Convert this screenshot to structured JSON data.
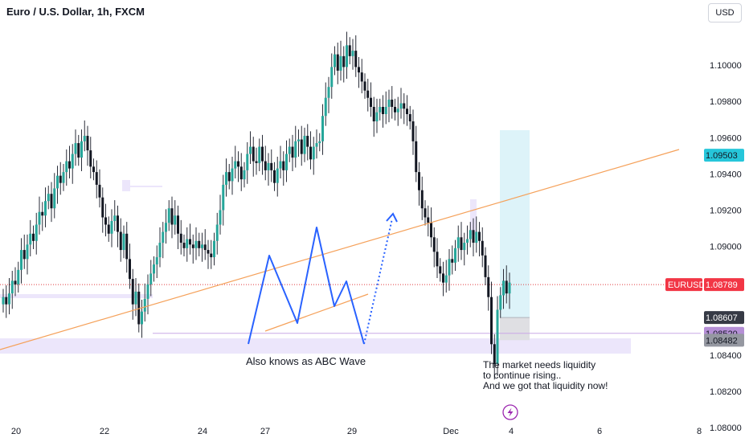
{
  "header": {
    "title": "Euro / U.S. Dollar, 1h, FXCM",
    "currency": "USD"
  },
  "colors": {
    "up": "#26a69a",
    "down": "#131722",
    "wick": "#2a2e39",
    "uptrend_line": "#f5a15a",
    "abc": "#2962ff",
    "zone": "#ece6fb",
    "target_box": "#ddf3f9",
    "stop_box": "#dfdfe3",
    "current_line": "#e03a3e",
    "support_line": "#c9a8e6",
    "price_badge": "#f23645",
    "target_badge": "#26c6da",
    "support_badge": "#b58fd6",
    "grey_badge": "#363a45"
  },
  "annotations": {
    "abc": "Also knows as ABC Wave",
    "note_1": "The market needs liquidity",
    "note_2": " to continue rising..",
    "note_3": "And we got that liquidity now!"
  },
  "badges": {
    "symbol": "EURUSD",
    "price": "1.08789",
    "target": "1.09503",
    "entry": "1.08607",
    "support": "1.08520",
    "stop": "1.08482"
  },
  "chart_data": {
    "type": "candlestick",
    "symbol": "EURUSD",
    "timeframe": "1h",
    "ylim": [
      1.0792,
      1.1036
    ],
    "y_ticks": [
      1.08,
      1.082,
      1.084,
      1.086,
      1.088,
      1.09,
      1.092,
      1.094,
      1.096,
      1.098,
      1.1
    ],
    "y_tick_labels": [
      "1.08000",
      "1.08200",
      "1.08400",
      "1.08600",
      "1.08800",
      "1.09000",
      "1.09200",
      "1.09400",
      "1.09600",
      "1.09800",
      "1.10000"
    ],
    "x_tick_labels": [
      "20",
      "22",
      "24",
      "27",
      "29",
      "Dec",
      "4",
      "6",
      "8"
    ],
    "current_price": 1.08789,
    "series": [
      {
        "values": [
          1.0872,
          1.0868,
          1.0874,
          1.0881,
          1.0879,
          1.0887,
          1.0898,
          1.0893,
          1.0901,
          1.0907,
          1.0903,
          1.0912,
          1.0919,
          1.0917,
          1.0925,
          1.0929,
          1.0921,
          1.0932,
          1.0939,
          1.0935,
          1.0941,
          1.0947,
          1.0943,
          1.0951,
          1.0957,
          1.0949,
          1.0958,
          1.0961,
          1.0953,
          1.0944,
          1.0941,
          1.0934,
          1.0927,
          1.0916,
          1.0912,
          1.0907,
          1.0914,
          1.0917,
          1.0908,
          1.0898,
          1.0907,
          1.0893,
          1.0882,
          1.0868,
          1.0875,
          1.0857,
          1.0864,
          1.0871,
          1.0879,
          1.0885,
          1.089,
          1.0894,
          1.0902,
          1.0908,
          1.0913,
          1.0921,
          1.0912,
          1.0917,
          1.0907,
          1.0902,
          1.0899,
          1.0904,
          1.0901,
          1.0899,
          1.0903,
          1.0899,
          1.0901,
          1.0898,
          1.0896,
          1.0894,
          1.0903,
          1.0912,
          1.092,
          1.0934,
          1.0941,
          1.0936,
          1.0943,
          1.0947,
          1.0944,
          1.0937,
          1.0942,
          1.0951,
          1.0955,
          1.0947,
          1.0946,
          1.0955,
          1.0947,
          1.0942,
          1.0946,
          1.0942,
          1.0935,
          1.0943,
          1.0947,
          1.0942,
          1.0951,
          1.0955,
          1.0949,
          1.0958,
          1.0959,
          1.0951,
          1.0961,
          1.0955,
          1.0948,
          1.0955,
          1.0957,
          1.0958,
          1.0972,
          1.0982,
          1.0988,
          1.0999,
          1.1006,
          1.0997,
          1.1005,
          1.0999,
          1.1011,
          1.1005,
          1.1008,
          1.0999,
          1.0996,
          1.0991,
          1.0986,
          1.0982,
          1.0977,
          1.0969,
          1.0974,
          1.0977,
          1.0973,
          1.0977,
          1.0981,
          1.0977,
          1.0974,
          1.0976,
          1.0979,
          1.0976,
          1.0973,
          1.0969,
          1.0958,
          1.0941,
          1.0931,
          1.0921,
          1.0916,
          1.0913,
          1.0905,
          1.0897,
          1.0889,
          1.0885,
          1.088,
          1.0884,
          1.0893,
          1.0891,
          1.0899,
          1.0905,
          1.0898,
          1.0902,
          1.0904,
          1.0909,
          1.0902,
          1.0908,
          1.0903,
          1.0895,
          1.0883,
          1.0872,
          1.0846,
          1.0835,
          1.0865,
          1.0873,
          1.0881,
          1.0874,
          1.088
        ]
      }
    ],
    "levels": {
      "target": 1.09503,
      "entry": 1.08607,
      "support": 1.0852,
      "stop": 1.08482
    }
  }
}
